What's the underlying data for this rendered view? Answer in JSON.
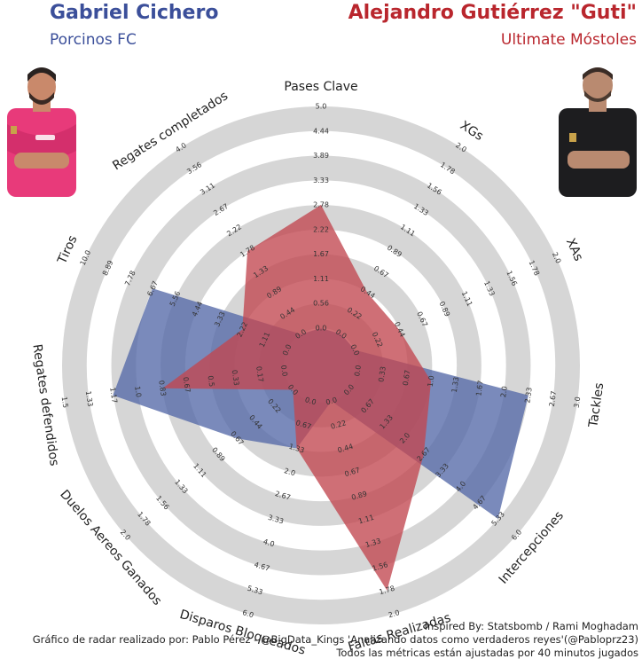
{
  "players": {
    "left": {
      "name": "Gabriel Cichero",
      "team": "Porcinos FC",
      "color": "#3b4f9a",
      "fill": "#5569a8",
      "jersey": "#e83a7a"
    },
    "right": {
      "name": "Alejandro Gutiérrez \"Guti\"",
      "team": "Ultimate Móstoles",
      "color": "#b9262d",
      "fill": "#c2474f",
      "jersey": "#1d1d1f"
    }
  },
  "chart_data": {
    "type": "radar",
    "params": [
      "Pases Clave",
      "XGs",
      "XAs",
      "Tackles",
      "Intercepciones",
      "Faltas Realizadas",
      "Disparos Bloqueados",
      "Duelos Aereos Ganados",
      "Regates defendidos",
      "Tiros",
      "Regates completados"
    ],
    "ranges": [
      [
        0,
        5.0
      ],
      [
        0,
        2.0
      ],
      [
        0,
        2.0
      ],
      [
        0,
        3.0
      ],
      [
        0,
        6.0
      ],
      [
        0,
        2.0
      ],
      [
        0,
        6.0
      ],
      [
        0,
        2.0
      ],
      [
        0,
        1.5
      ],
      [
        0,
        10.0
      ],
      [
        0,
        4.0
      ]
    ],
    "tick_labels": [
      [
        "0.0",
        "0.56",
        "1.11",
        "1.67",
        "2.22",
        "2.78",
        "3.33",
        "3.89",
        "4.44",
        "5.0"
      ],
      [
        "0.0",
        "0.22",
        "0.44",
        "0.67",
        "0.89",
        "1.11",
        "1.33",
        "1.56",
        "1.78",
        "2.0"
      ],
      [
        "0.0",
        "0.22",
        "0.44",
        "0.67",
        "0.89",
        "1.11",
        "1.33",
        "1.56",
        "1.78",
        "2.0"
      ],
      [
        "0.0",
        "0.33",
        "0.67",
        "1.0",
        "1.33",
        "1.67",
        "2.0",
        "2.33",
        "2.67",
        "3.0"
      ],
      [
        "0.0",
        "0.67",
        "1.33",
        "2.0",
        "2.67",
        "3.33",
        "4.0",
        "4.67",
        "5.33",
        "6.0"
      ],
      [
        "0.0",
        "0.22",
        "0.44",
        "0.67",
        "0.89",
        "1.11",
        "1.33",
        "1.56",
        "1.78",
        "2.0"
      ],
      [
        "0.0",
        "0.67",
        "1.33",
        "2.0",
        "2.67",
        "3.33",
        "4.0",
        "4.67",
        "5.33",
        "6.0"
      ],
      [
        "0.0",
        "0.22",
        "0.44",
        "0.67",
        "0.89",
        "1.11",
        "1.33",
        "1.56",
        "1.78",
        "2.0"
      ],
      [
        "0.0",
        "0.17",
        "0.33",
        "0.5",
        "0.67",
        "0.83",
        "1.0",
        "1.17",
        "1.33",
        "1.5"
      ],
      [
        "0.0",
        "1.11",
        "2.22",
        "3.33",
        "4.44",
        "5.56",
        "6.67",
        "7.78",
        "8.89",
        "10.0"
      ],
      [
        "0.0",
        "0.44",
        "0.89",
        "1.33",
        "1.78",
        "2.22",
        "2.67",
        "3.11",
        "3.56",
        "4.0"
      ]
    ],
    "series": [
      {
        "name": "Gabriel Cichero",
        "values": [
          0.0,
          0.0,
          0.0,
          2.33,
          5.33,
          0.0,
          1.33,
          0.67,
          1.17,
          6.67,
          0.0
        ]
      },
      {
        "name": "Alejandro Gutiérrez \"Guti\"",
        "values": [
          2.78,
          0.44,
          0.44,
          1.0,
          2.67,
          1.78,
          1.33,
          0.0,
          0.83,
          2.22,
          1.78
        ]
      }
    ]
  },
  "footer": {
    "line1": "Inspired By: Statsbomb / Rami Moghadam",
    "line2": "Gráfico de radar realizado por: Pablo Pérez - @BigData_Kings 'Analizando datos como verdaderos reyes'(@Pabloprz23)",
    "line3": "Todos las métricas están ajustadas por 40 minutos jugados"
  }
}
